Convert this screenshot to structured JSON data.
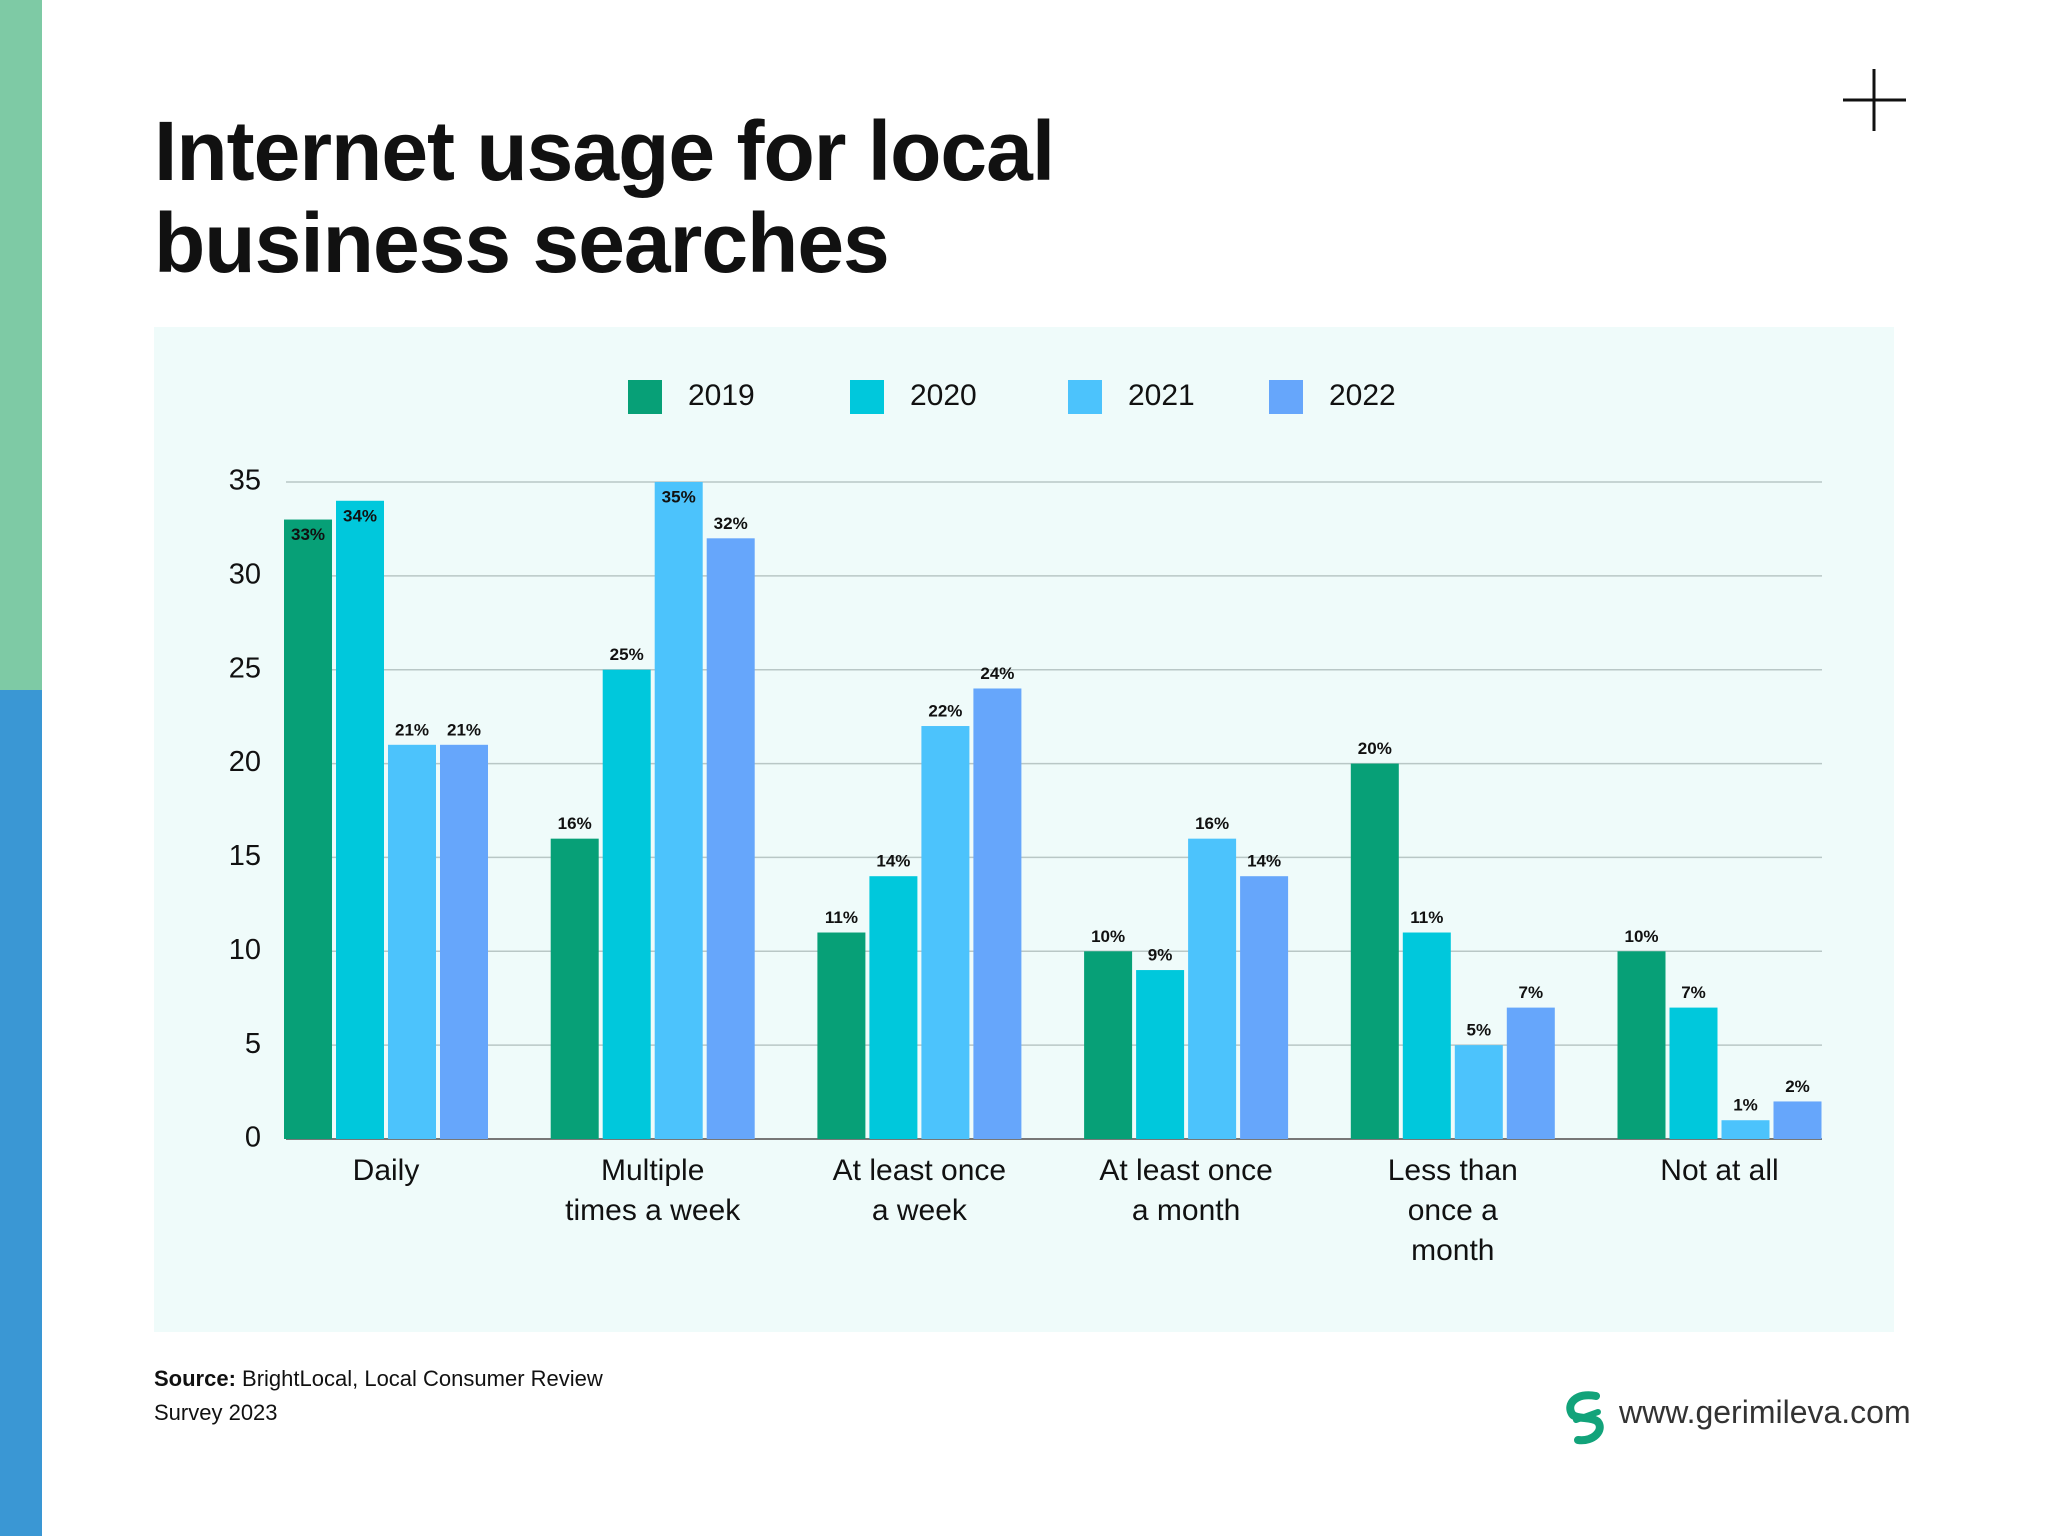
{
  "chart_data": {
    "type": "bar",
    "title": "Internet usage for local business searches",
    "categories": [
      "Daily",
      "Multiple\ntimes a week",
      "At least once\na week",
      "At least once\na month",
      "Less than\nonce a\nmonth",
      "Not at all"
    ],
    "series": [
      {
        "name": "2019",
        "color": "#07a077",
        "values": [
          33,
          16,
          11,
          10,
          20,
          10
        ],
        "value_labels": [
          "33%",
          "16%",
          "11%",
          "10%",
          "20%",
          "10%"
        ]
      },
      {
        "name": "2020",
        "color": "#00c8dc",
        "values": [
          34,
          25,
          14,
          9,
          11,
          7
        ],
        "value_labels": [
          "34%",
          "25%",
          "14%",
          "9%",
          "11%",
          "7%"
        ]
      },
      {
        "name": "2021",
        "color": "#4cc3fc",
        "values": [
          21,
          35,
          22,
          16,
          5,
          1
        ],
        "value_labels": [
          "21%",
          "35%",
          "22%",
          "16%",
          "5%",
          "1%"
        ]
      },
      {
        "name": "2022",
        "color": "#66a6fb",
        "values": [
          21,
          32,
          24,
          14,
          7,
          2
        ],
        "value_labels": [
          "21%",
          "32%",
          "24%",
          "14%",
          "7%",
          "2%"
        ]
      }
    ],
    "ylim": [
      0,
      35
    ],
    "yticks": [
      0,
      5,
      10,
      15,
      20,
      25,
      30,
      35
    ],
    "grid": true,
    "legend": "top"
  },
  "footer": {
    "source_label": "Source:",
    "source_text": "BrightLocal, Local Consumer Review Survey 2023",
    "website": "www.gerimileva.com"
  }
}
